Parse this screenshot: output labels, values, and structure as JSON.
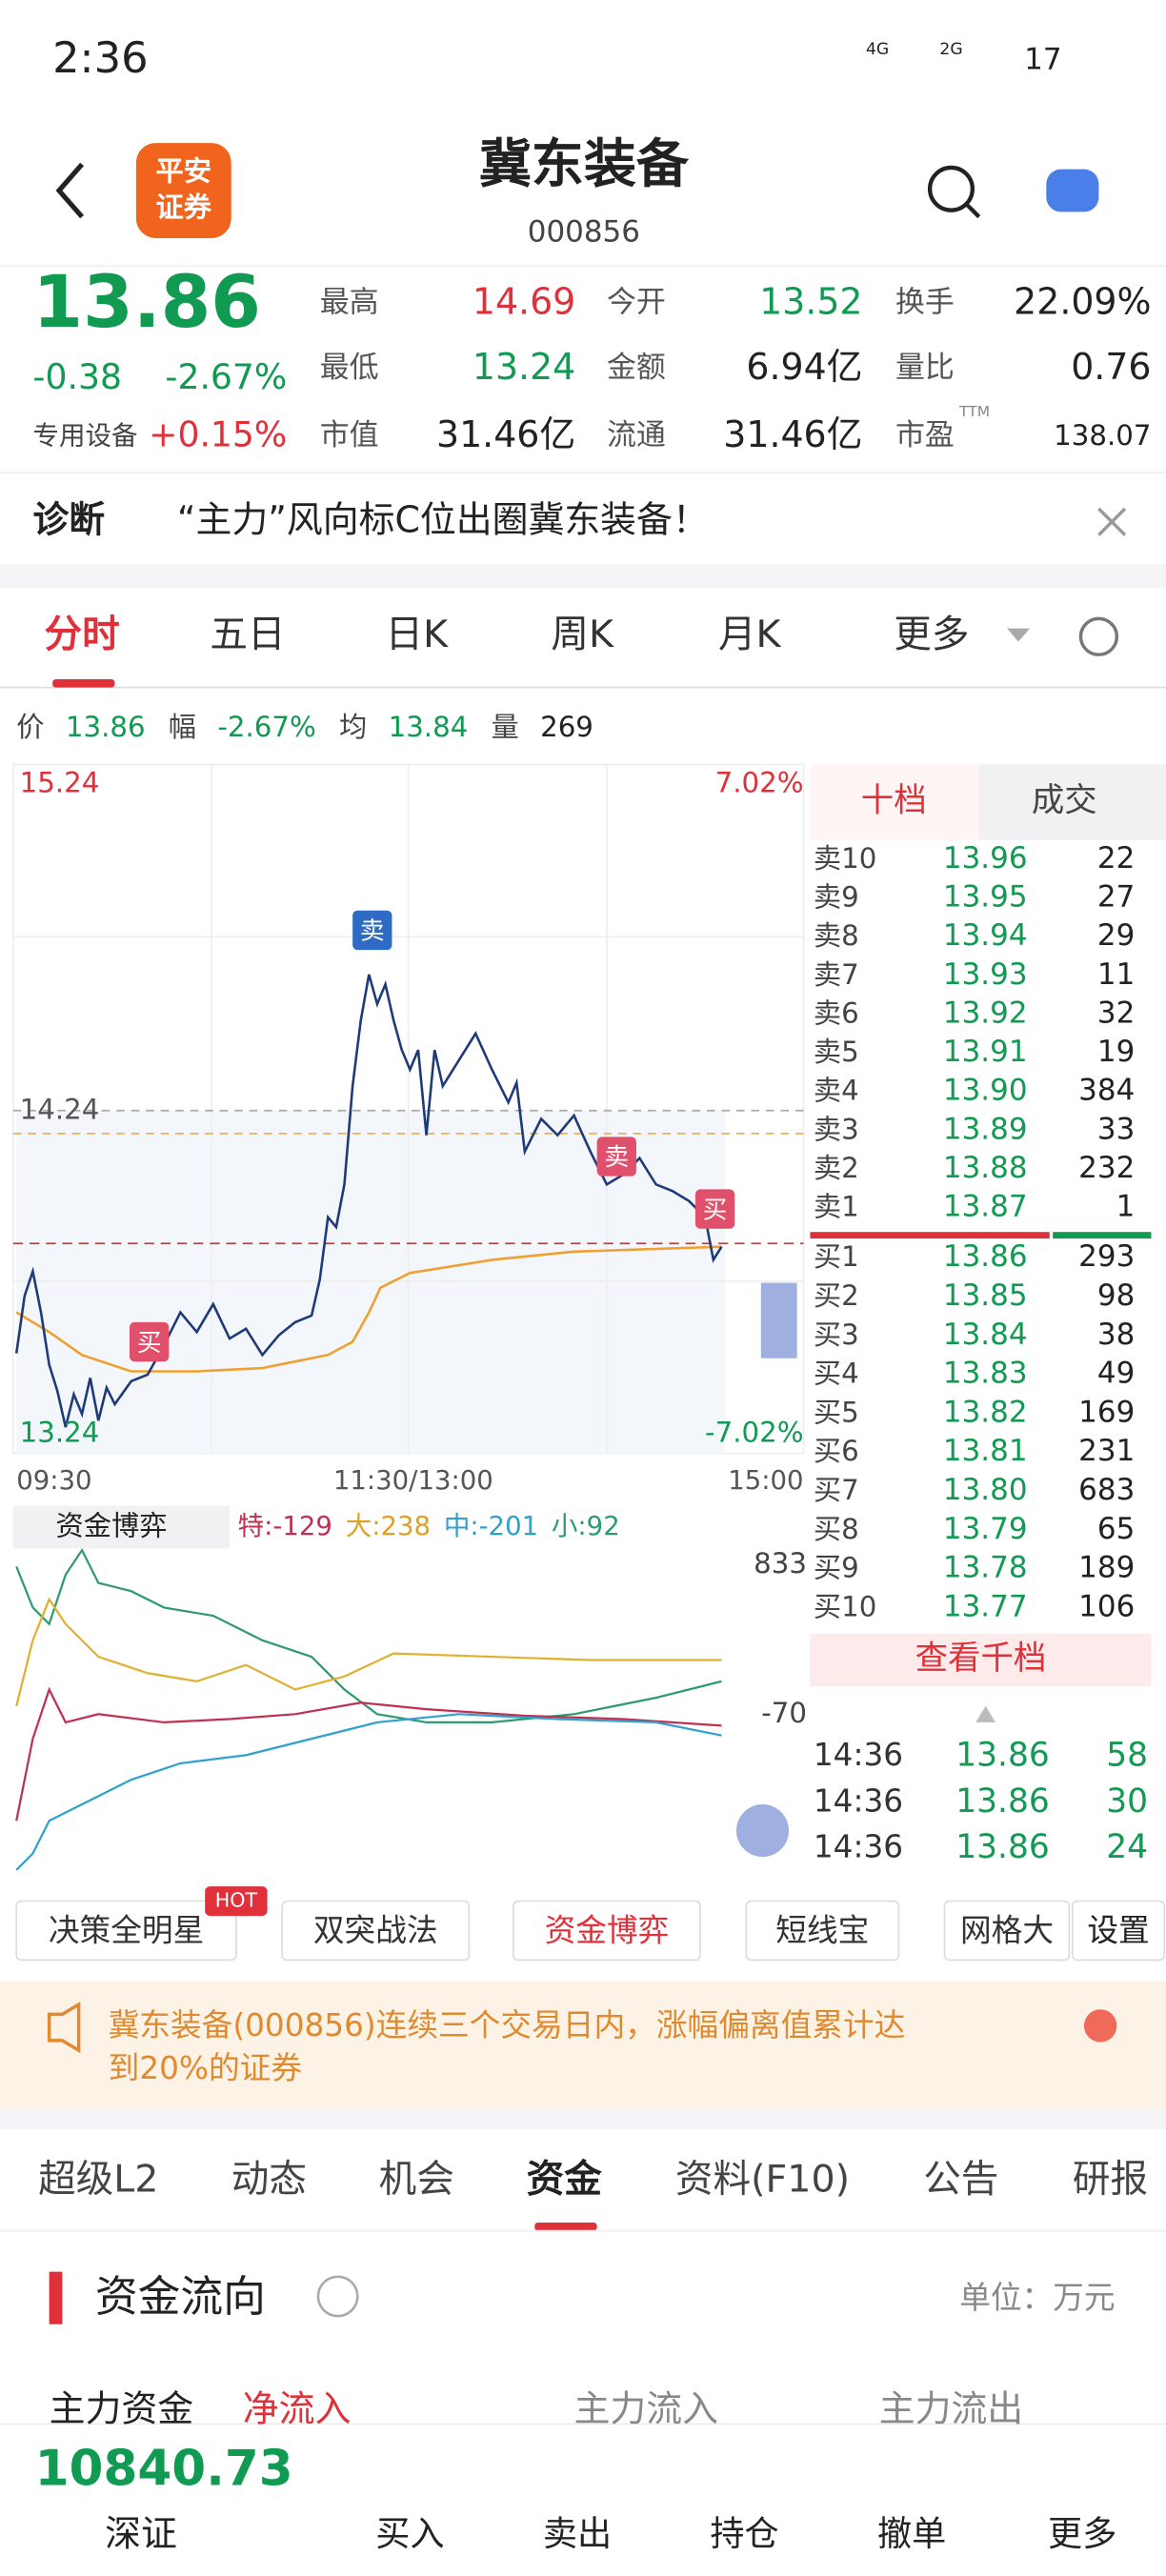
{
  "status": {
    "time": "2:36",
    "network": [
      "4G",
      "2G"
    ],
    "battery": "17"
  },
  "header": {
    "logo": [
      "平安",
      "证券"
    ],
    "title": "冀东装备",
    "code": "000856"
  },
  "quote": {
    "price": "13.86",
    "change": "-0.38",
    "percent": "-2.67%",
    "sector": "专用设备",
    "sector_percent": "+0.15%",
    "stats": [
      {
        "label": "最高",
        "value": "14.69"
      },
      {
        "label": "今开",
        "value": "13.52"
      },
      {
        "label": "换手",
        "value": "22.09%"
      },
      {
        "label": "最低",
        "value": "13.24"
      },
      {
        "label": "金额",
        "value": "6.94亿"
      },
      {
        "label": "量比",
        "value": "0.76"
      },
      {
        "label": "市值",
        "value": "31.46亿"
      },
      {
        "label": "流通",
        "value": "31.46亿"
      },
      {
        "label": "市盈",
        "value": "138.07",
        "sup": "TTM"
      }
    ]
  },
  "diagnosis": {
    "label": "诊断",
    "text": "“主力”风向标C位出圈冀东装备！"
  },
  "chart_tabs": [
    "分时",
    "五日",
    "日K",
    "周K",
    "月K",
    "更多"
  ],
  "summary": [
    {
      "label": "价",
      "value": "13.86"
    },
    {
      "label": "幅",
      "value": "-2.67%"
    },
    {
      "label": "均",
      "value": "13.84"
    },
    {
      "label": "量",
      "value": "269"
    }
  ],
  "intraday": {
    "high": "15.24",
    "high_pct": "7.02%",
    "mid": "14.24",
    "low": "13.24",
    "low_pct": "-7.02%",
    "times": [
      "09:30",
      "11:30/13:00",
      "15:00"
    ],
    "markers": [
      "卖",
      "买",
      "卖",
      "买"
    ]
  },
  "order_book": {
    "tabs": [
      "十档",
      "成交"
    ],
    "asks": [
      [
        "卖10",
        "13.96",
        "22"
      ],
      [
        "卖9",
        "13.95",
        "27"
      ],
      [
        "卖8",
        "13.94",
        "29"
      ],
      [
        "卖7",
        "13.93",
        "11"
      ],
      [
        "卖6",
        "13.92",
        "32"
      ],
      [
        "卖5",
        "13.91",
        "19"
      ],
      [
        "卖4",
        "13.90",
        "384"
      ],
      [
        "卖3",
        "13.89",
        "33"
      ],
      [
        "卖2",
        "13.88",
        "232"
      ],
      [
        "卖1",
        "13.87",
        "1"
      ]
    ],
    "bids": [
      [
        "买1",
        "13.86",
        "293"
      ],
      [
        "买2",
        "13.85",
        "98"
      ],
      [
        "买3",
        "13.84",
        "38"
      ],
      [
        "买4",
        "13.83",
        "49"
      ],
      [
        "买5",
        "13.82",
        "169"
      ],
      [
        "买6",
        "13.81",
        "231"
      ],
      [
        "买7",
        "13.80",
        "683"
      ],
      [
        "买8",
        "13.79",
        "65"
      ],
      [
        "买9",
        "13.78",
        "189"
      ],
      [
        "买10",
        "13.77",
        "106"
      ]
    ],
    "more": "查看千档",
    "trades": [
      [
        "14:36",
        "13.86",
        "58"
      ],
      [
        "14:36",
        "13.86",
        "30"
      ],
      [
        "14:36",
        "13.86",
        "24"
      ]
    ]
  },
  "fund_game": {
    "title": "资金博弈",
    "items": [
      "特:-129",
      "大:238",
      "中:-201",
      "小:92"
    ],
    "top": "833",
    "mid": "-70"
  },
  "tools": {
    "buttons": [
      "决策全明星",
      "双突战法",
      "资金博弈",
      "短线宝",
      "网格大"
    ],
    "hot": "HOT",
    "settings": "设置"
  },
  "notice": [
    "冀东装备(000856)连续三个交易日内，涨幅偏离值累计达",
    "到20%的证券"
  ],
  "info_tabs": [
    "超级L2",
    "动态",
    "机会",
    "资金",
    "资料(F10)",
    "公告",
    "研报"
  ],
  "fund_flow": {
    "title": "资金流向",
    "unit": "单位：万元",
    "row": [
      "主力资金",
      "净流入",
      "主力流入",
      "主力流出"
    ]
  },
  "bottom": {
    "index": "10840.73",
    "market": "深证",
    "actions": [
      "买入",
      "卖出",
      "持仓",
      "撤单",
      "更多"
    ]
  }
}
